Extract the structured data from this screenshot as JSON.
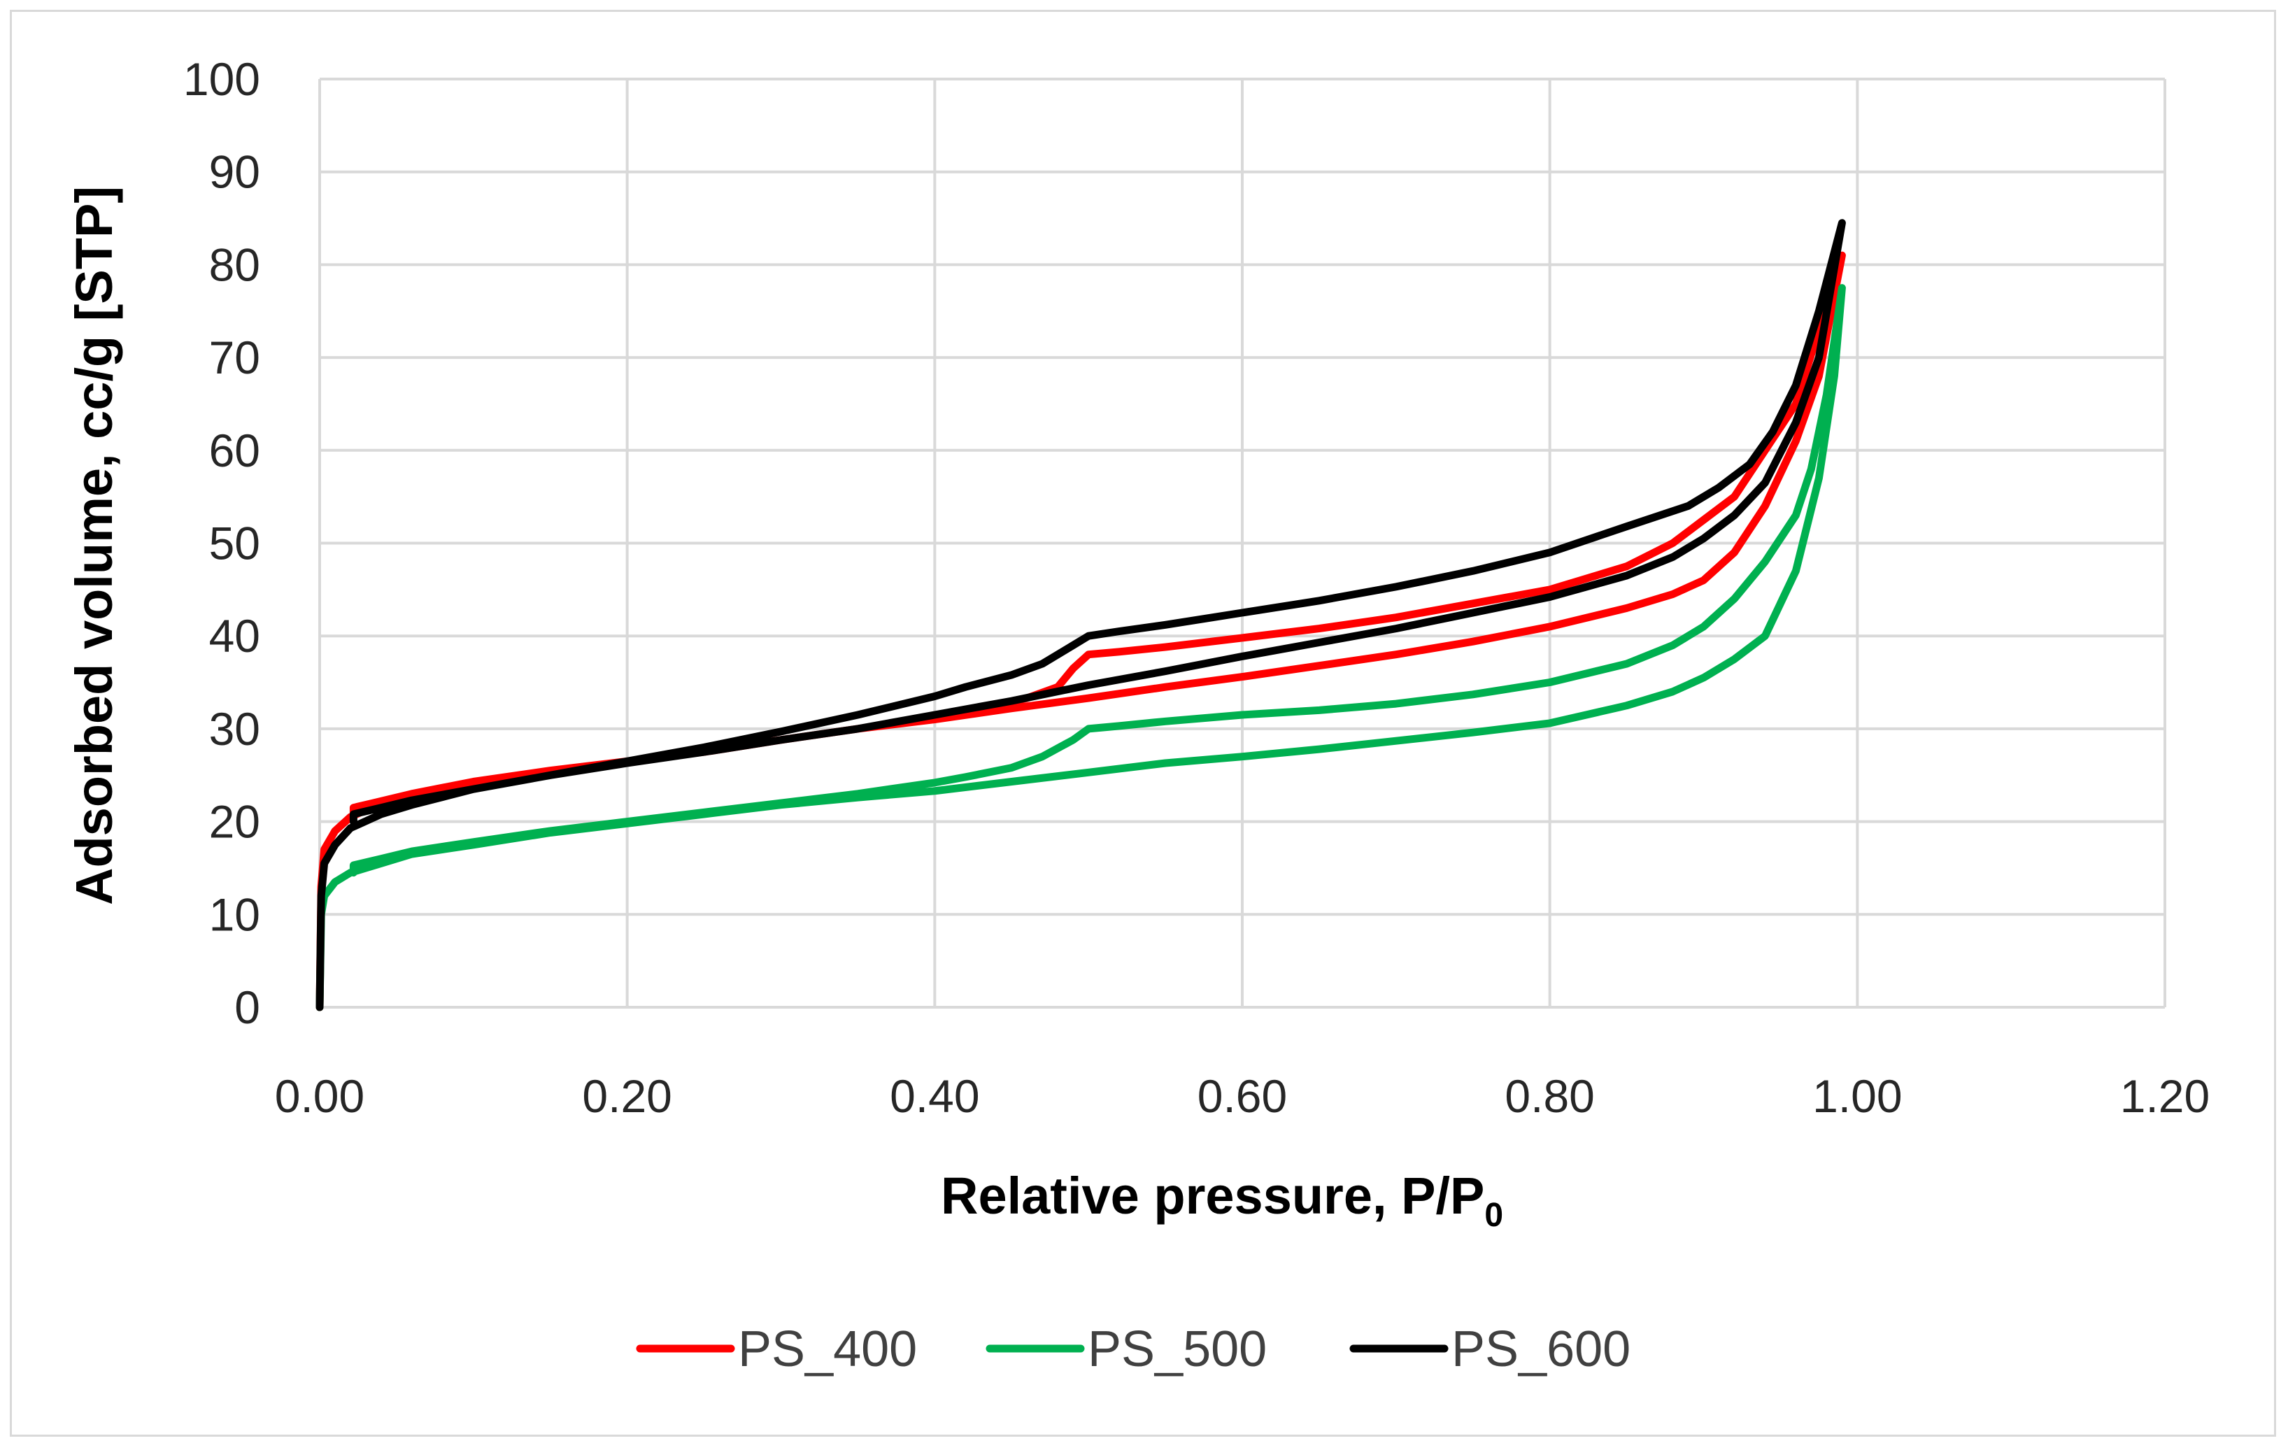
{
  "chart_data": {
    "type": "line",
    "title": "",
    "xlabel": "Relative pressure, P/P",
    "xlabel_subscript": "0",
    "ylabel": "Adsorbed volume, cc/g [STP]",
    "xlim": [
      0,
      1.2
    ],
    "ylim": [
      0,
      100
    ],
    "x_ticks": [
      0,
      0.2,
      0.4,
      0.6,
      0.8,
      1.0,
      1.2
    ],
    "x_tick_labels": [
      "0.00",
      "0.20",
      "0.40",
      "0.60",
      "0.80",
      "1.00",
      "1.20"
    ],
    "y_ticks": [
      0,
      10,
      20,
      30,
      40,
      50,
      60,
      70,
      80,
      90,
      100
    ],
    "y_tick_labels": [
      "0",
      "10",
      "20",
      "30",
      "40",
      "50",
      "60",
      "70",
      "80",
      "90",
      "100"
    ],
    "grid": true,
    "legend_position": "bottom",
    "series": [
      {
        "name": "PS_400",
        "color": "#ff0000",
        "adsorption": [
          [
            0.0,
            0.0
          ],
          [
            0.001,
            13.0
          ],
          [
            0.003,
            17.0
          ],
          [
            0.01,
            19.0
          ],
          [
            0.02,
            20.5
          ],
          [
            0.04,
            22.0
          ],
          [
            0.06,
            23.0
          ],
          [
            0.1,
            24.3
          ],
          [
            0.15,
            25.5
          ],
          [
            0.2,
            26.5
          ],
          [
            0.25,
            27.5
          ],
          [
            0.3,
            28.8
          ],
          [
            0.35,
            30.0
          ],
          [
            0.4,
            31.0
          ],
          [
            0.45,
            32.2
          ],
          [
            0.5,
            33.3
          ],
          [
            0.55,
            34.5
          ],
          [
            0.6,
            35.6
          ],
          [
            0.65,
            36.8
          ],
          [
            0.7,
            38.0
          ],
          [
            0.75,
            39.4
          ],
          [
            0.8,
            41.0
          ],
          [
            0.85,
            43.0
          ],
          [
            0.88,
            44.5
          ],
          [
            0.9,
            46.0
          ],
          [
            0.92,
            49.0
          ],
          [
            0.94,
            54.0
          ],
          [
            0.96,
            61.0
          ],
          [
            0.975,
            68.0
          ],
          [
            0.99,
            81.0
          ]
        ],
        "desorption": [
          [
            0.99,
            81.0
          ],
          [
            0.975,
            73.0
          ],
          [
            0.96,
            65.0
          ],
          [
            0.94,
            60.0
          ],
          [
            0.92,
            55.0
          ],
          [
            0.9,
            52.5
          ],
          [
            0.88,
            50.0
          ],
          [
            0.85,
            47.5
          ],
          [
            0.8,
            45.0
          ],
          [
            0.75,
            43.5
          ],
          [
            0.7,
            42.0
          ],
          [
            0.65,
            40.8
          ],
          [
            0.6,
            39.8
          ],
          [
            0.55,
            38.8
          ],
          [
            0.52,
            38.3
          ],
          [
            0.5,
            38.0
          ],
          [
            0.49,
            36.5
          ],
          [
            0.48,
            34.5
          ],
          [
            0.46,
            33.3
          ],
          [
            0.43,
            32.2
          ],
          [
            0.4,
            31.2
          ],
          [
            0.35,
            30.0
          ],
          [
            0.3,
            28.8
          ],
          [
            0.25,
            27.6
          ],
          [
            0.2,
            26.4
          ],
          [
            0.15,
            25.2
          ],
          [
            0.1,
            24.0
          ],
          [
            0.06,
            23.0
          ],
          [
            0.04,
            22.2
          ],
          [
            0.022,
            21.5
          ],
          [
            0.022,
            20.6
          ]
        ]
      },
      {
        "name": "PS_500",
        "color": "#00b050",
        "adsorption": [
          [
            0.0,
            0.0
          ],
          [
            0.001,
            10.0
          ],
          [
            0.003,
            12.0
          ],
          [
            0.01,
            13.5
          ],
          [
            0.02,
            14.5
          ],
          [
            0.04,
            15.5
          ],
          [
            0.06,
            16.5
          ],
          [
            0.1,
            17.5
          ],
          [
            0.15,
            18.8
          ],
          [
            0.2,
            19.8
          ],
          [
            0.25,
            20.8
          ],
          [
            0.3,
            21.8
          ],
          [
            0.35,
            22.6
          ],
          [
            0.4,
            23.3
          ],
          [
            0.45,
            24.3
          ],
          [
            0.5,
            25.3
          ],
          [
            0.55,
            26.3
          ],
          [
            0.6,
            27.0
          ],
          [
            0.65,
            27.8
          ],
          [
            0.7,
            28.7
          ],
          [
            0.75,
            29.6
          ],
          [
            0.8,
            30.6
          ],
          [
            0.85,
            32.5
          ],
          [
            0.88,
            34.0
          ],
          [
            0.9,
            35.5
          ],
          [
            0.92,
            37.5
          ],
          [
            0.94,
            40.0
          ],
          [
            0.96,
            47.0
          ],
          [
            0.975,
            57.0
          ],
          [
            0.985,
            68.0
          ],
          [
            0.99,
            77.5
          ]
        ],
        "desorption": [
          [
            0.99,
            77.5
          ],
          [
            0.98,
            66.0
          ],
          [
            0.97,
            58.0
          ],
          [
            0.96,
            53.0
          ],
          [
            0.94,
            48.0
          ],
          [
            0.92,
            44.0
          ],
          [
            0.9,
            41.0
          ],
          [
            0.88,
            39.0
          ],
          [
            0.85,
            37.0
          ],
          [
            0.8,
            35.0
          ],
          [
            0.75,
            33.7
          ],
          [
            0.7,
            32.7
          ],
          [
            0.65,
            32.0
          ],
          [
            0.6,
            31.5
          ],
          [
            0.55,
            30.8
          ],
          [
            0.52,
            30.3
          ],
          [
            0.5,
            30.0
          ],
          [
            0.49,
            28.8
          ],
          [
            0.47,
            27.0
          ],
          [
            0.45,
            25.8
          ],
          [
            0.42,
            24.8
          ],
          [
            0.4,
            24.2
          ],
          [
            0.35,
            23.0
          ],
          [
            0.3,
            22.0
          ],
          [
            0.25,
            21.0
          ],
          [
            0.2,
            20.0
          ],
          [
            0.15,
            19.0
          ],
          [
            0.1,
            17.8
          ],
          [
            0.06,
            16.8
          ],
          [
            0.04,
            16.0
          ],
          [
            0.022,
            15.3
          ],
          [
            0.022,
            14.5
          ]
        ]
      },
      {
        "name": "PS_600",
        "color": "#000000",
        "adsorption": [
          [
            0.0,
            0.0
          ],
          [
            0.001,
            12.0
          ],
          [
            0.003,
            15.5
          ],
          [
            0.01,
            17.5
          ],
          [
            0.02,
            19.3
          ],
          [
            0.04,
            20.8
          ],
          [
            0.06,
            21.8
          ],
          [
            0.1,
            23.5
          ],
          [
            0.15,
            25.0
          ],
          [
            0.2,
            26.3
          ],
          [
            0.25,
            27.5
          ],
          [
            0.3,
            28.8
          ],
          [
            0.35,
            30.0
          ],
          [
            0.4,
            31.5
          ],
          [
            0.45,
            33.0
          ],
          [
            0.5,
            34.7
          ],
          [
            0.55,
            36.2
          ],
          [
            0.6,
            37.8
          ],
          [
            0.65,
            39.3
          ],
          [
            0.7,
            40.8
          ],
          [
            0.75,
            42.5
          ],
          [
            0.8,
            44.2
          ],
          [
            0.85,
            46.5
          ],
          [
            0.88,
            48.5
          ],
          [
            0.9,
            50.5
          ],
          [
            0.92,
            53.0
          ],
          [
            0.94,
            56.5
          ],
          [
            0.96,
            63.0
          ],
          [
            0.975,
            70.0
          ],
          [
            0.99,
            84.5
          ]
        ],
        "desorption": [
          [
            0.99,
            84.5
          ],
          [
            0.975,
            75.0
          ],
          [
            0.96,
            67.0
          ],
          [
            0.945,
            62.0
          ],
          [
            0.93,
            58.5
          ],
          [
            0.91,
            56.0
          ],
          [
            0.89,
            54.0
          ],
          [
            0.85,
            51.8
          ],
          [
            0.8,
            49.0
          ],
          [
            0.75,
            47.0
          ],
          [
            0.7,
            45.3
          ],
          [
            0.65,
            43.8
          ],
          [
            0.6,
            42.5
          ],
          [
            0.55,
            41.2
          ],
          [
            0.52,
            40.5
          ],
          [
            0.5,
            40.0
          ],
          [
            0.49,
            39.0
          ],
          [
            0.47,
            37.0
          ],
          [
            0.45,
            35.8
          ],
          [
            0.42,
            34.5
          ],
          [
            0.4,
            33.5
          ],
          [
            0.35,
            31.5
          ],
          [
            0.3,
            29.7
          ],
          [
            0.25,
            28.0
          ],
          [
            0.2,
            26.5
          ],
          [
            0.15,
            25.0
          ],
          [
            0.1,
            23.5
          ],
          [
            0.06,
            22.3
          ],
          [
            0.04,
            21.5
          ],
          [
            0.022,
            20.8
          ],
          [
            0.022,
            20.0
          ]
        ]
      }
    ]
  }
}
